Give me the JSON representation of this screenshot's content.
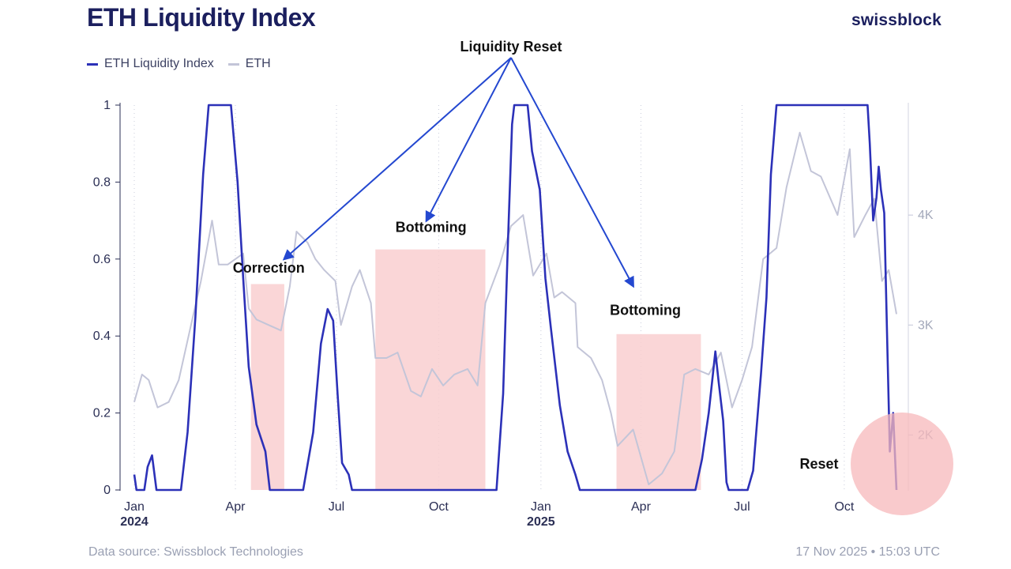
{
  "header": {
    "title": "ETH Liquidity Index",
    "brand": "swissblock"
  },
  "legend": [
    {
      "label": "ETH Liquidity Index",
      "color": "#2c31b8"
    },
    {
      "label": "ETH",
      "color": "#c3c5d8"
    }
  ],
  "footer": {
    "source": "Data source: Swissblock Technologies",
    "timestamp": "17 Nov 2025 • 15:03 UTC"
  },
  "chart_data": {
    "type": "line",
    "x_axis": {
      "ticks": [
        "Jan",
        "Apr",
        "Jul",
        "Oct",
        "Jan",
        "Apr",
        "Jul",
        "Oct"
      ],
      "year_labels": [
        {
          "tick_index": 0,
          "label": "2024"
        },
        {
          "tick_index": 4,
          "label": "2025"
        }
      ],
      "tick_dates": [
        "2024-01-01",
        "2024-04-01",
        "2024-07-01",
        "2024-10-01",
        "2025-01-01",
        "2025-04-01",
        "2025-07-01",
        "2025-10-01"
      ]
    },
    "y_left": {
      "ticks": [
        "0",
        "0.2",
        "0.4",
        "0.6",
        "0.8",
        "1"
      ],
      "range": [
        0,
        1
      ]
    },
    "y_right": {
      "ticks": [
        "2K",
        "3K",
        "4K"
      ],
      "range": [
        1500,
        5000
      ]
    },
    "grid": "vertical dotted",
    "legend_position": "top-left",
    "series": [
      {
        "name": "ETH Liquidity Index",
        "axis": "left",
        "color": "#2c31b8",
        "points": [
          [
            "2024-01-01",
            0.04
          ],
          [
            "2024-01-03",
            0.0
          ],
          [
            "2024-01-10",
            0.0
          ],
          [
            "2024-01-13",
            0.06
          ],
          [
            "2024-01-17",
            0.09
          ],
          [
            "2024-01-21",
            0.0
          ],
          [
            "2024-02-12",
            0.0
          ],
          [
            "2024-02-18",
            0.15
          ],
          [
            "2024-02-25",
            0.45
          ],
          [
            "2024-03-03",
            0.82
          ],
          [
            "2024-03-08",
            1.0
          ],
          [
            "2024-03-28",
            1.0
          ],
          [
            "2024-04-03",
            0.8
          ],
          [
            "2024-04-08",
            0.55
          ],
          [
            "2024-04-13",
            0.32
          ],
          [
            "2024-04-20",
            0.17
          ],
          [
            "2024-04-28",
            0.1
          ],
          [
            "2024-05-02",
            0.0
          ],
          [
            "2024-06-01",
            0.0
          ],
          [
            "2024-06-10",
            0.15
          ],
          [
            "2024-06-17",
            0.38
          ],
          [
            "2024-06-23",
            0.47
          ],
          [
            "2024-06-28",
            0.44
          ],
          [
            "2024-07-02",
            0.25
          ],
          [
            "2024-07-06",
            0.07
          ],
          [
            "2024-07-12",
            0.04
          ],
          [
            "2024-07-15",
            0.0
          ],
          [
            "2024-11-22",
            0.0
          ],
          [
            "2024-11-28",
            0.25
          ],
          [
            "2024-12-02",
            0.62
          ],
          [
            "2024-12-06",
            0.95
          ],
          [
            "2024-12-08",
            1.0
          ],
          [
            "2024-12-20",
            1.0
          ],
          [
            "2024-12-24",
            0.88
          ],
          [
            "2024-12-31",
            0.78
          ],
          [
            "2025-01-05",
            0.55
          ],
          [
            "2025-01-10",
            0.42
          ],
          [
            "2025-01-18",
            0.22
          ],
          [
            "2025-01-25",
            0.1
          ],
          [
            "2025-02-01",
            0.04
          ],
          [
            "2025-02-05",
            0.0
          ],
          [
            "2025-05-20",
            0.0
          ],
          [
            "2025-05-26",
            0.08
          ],
          [
            "2025-06-01",
            0.2
          ],
          [
            "2025-06-07",
            0.36
          ],
          [
            "2025-06-10",
            0.28
          ],
          [
            "2025-06-14",
            0.18
          ],
          [
            "2025-06-17",
            0.02
          ],
          [
            "2025-06-19",
            0.0
          ],
          [
            "2025-07-06",
            0.0
          ],
          [
            "2025-07-11",
            0.05
          ],
          [
            "2025-07-18",
            0.3
          ],
          [
            "2025-07-23",
            0.5
          ],
          [
            "2025-07-27",
            0.82
          ],
          [
            "2025-08-01",
            1.0
          ],
          [
            "2025-10-22",
            1.0
          ],
          [
            "2025-10-24",
            0.9
          ],
          [
            "2025-10-27",
            0.7
          ],
          [
            "2025-10-30",
            0.76
          ],
          [
            "2025-11-01",
            0.84
          ],
          [
            "2025-11-03",
            0.78
          ],
          [
            "2025-11-06",
            0.72
          ],
          [
            "2025-11-09",
            0.35
          ],
          [
            "2025-11-11",
            0.1
          ],
          [
            "2025-11-14",
            0.2
          ],
          [
            "2025-11-17",
            0.0
          ]
        ]
      },
      {
        "name": "ETH",
        "axis": "right",
        "color": "#c3c5d8",
        "points": [
          [
            "2024-01-01",
            2300
          ],
          [
            "2024-01-08",
            2550
          ],
          [
            "2024-01-14",
            2500
          ],
          [
            "2024-01-22",
            2250
          ],
          [
            "2024-02-01",
            2300
          ],
          [
            "2024-02-10",
            2500
          ],
          [
            "2024-02-20",
            2950
          ],
          [
            "2024-03-01",
            3400
          ],
          [
            "2024-03-11",
            3950
          ],
          [
            "2024-03-17",
            3550
          ],
          [
            "2024-03-25",
            3550
          ],
          [
            "2024-04-01",
            3600
          ],
          [
            "2024-04-08",
            3650
          ],
          [
            "2024-04-13",
            3150
          ],
          [
            "2024-04-20",
            3050
          ],
          [
            "2024-05-01",
            3000
          ],
          [
            "2024-05-12",
            2950
          ],
          [
            "2024-05-20",
            3350
          ],
          [
            "2024-05-26",
            3850
          ],
          [
            "2024-06-05",
            3750
          ],
          [
            "2024-06-12",
            3600
          ],
          [
            "2024-06-20",
            3500
          ],
          [
            "2024-06-30",
            3400
          ],
          [
            "2024-07-05",
            3000
          ],
          [
            "2024-07-15",
            3350
          ],
          [
            "2024-07-22",
            3500
          ],
          [
            "2024-08-01",
            3200
          ],
          [
            "2024-08-05",
            2700
          ],
          [
            "2024-08-15",
            2700
          ],
          [
            "2024-08-25",
            2750
          ],
          [
            "2024-09-06",
            2400
          ],
          [
            "2024-09-15",
            2350
          ],
          [
            "2024-09-25",
            2600
          ],
          [
            "2024-10-05",
            2450
          ],
          [
            "2024-10-15",
            2550
          ],
          [
            "2024-10-27",
            2600
          ],
          [
            "2024-11-05",
            2450
          ],
          [
            "2024-11-12",
            3200
          ],
          [
            "2024-11-25",
            3550
          ],
          [
            "2024-12-05",
            3900
          ],
          [
            "2024-12-16",
            4000
          ],
          [
            "2024-12-25",
            3450
          ],
          [
            "2025-01-06",
            3650
          ],
          [
            "2025-01-13",
            3250
          ],
          [
            "2025-01-20",
            3300
          ],
          [
            "2025-02-01",
            3200
          ],
          [
            "2025-02-03",
            2800
          ],
          [
            "2025-02-15",
            2700
          ],
          [
            "2025-02-25",
            2500
          ],
          [
            "2025-03-05",
            2200
          ],
          [
            "2025-03-11",
            1900
          ],
          [
            "2025-03-25",
            2050
          ],
          [
            "2025-04-08",
            1550
          ],
          [
            "2025-04-20",
            1650
          ],
          [
            "2025-05-01",
            1850
          ],
          [
            "2025-05-10",
            2550
          ],
          [
            "2025-05-20",
            2600
          ],
          [
            "2025-06-01",
            2550
          ],
          [
            "2025-06-12",
            2750
          ],
          [
            "2025-06-22",
            2250
          ],
          [
            "2025-07-01",
            2500
          ],
          [
            "2025-07-10",
            2800
          ],
          [
            "2025-07-20",
            3600
          ],
          [
            "2025-08-01",
            3700
          ],
          [
            "2025-08-10",
            4250
          ],
          [
            "2025-08-22",
            4750
          ],
          [
            "2025-09-01",
            4400
          ],
          [
            "2025-09-10",
            4350
          ],
          [
            "2025-09-25",
            4000
          ],
          [
            "2025-10-06",
            4600
          ],
          [
            "2025-10-10",
            3800
          ],
          [
            "2025-10-20",
            4000
          ],
          [
            "2025-10-28",
            4150
          ],
          [
            "2025-11-04",
            3400
          ],
          [
            "2025-11-10",
            3500
          ],
          [
            "2025-11-17",
            3100
          ]
        ]
      }
    ],
    "shaded_regions": [
      {
        "start": "2024-04-15",
        "end": "2024-05-15",
        "top": 0.535
      },
      {
        "start": "2024-08-05",
        "end": "2024-11-12",
        "top": 0.625
      },
      {
        "start": "2025-03-10",
        "end": "2025-05-25",
        "top": 0.405
      }
    ],
    "annotations": [
      {
        "text": "Liquidity Reset",
        "arrow_targets": [
          {
            "date": "2024-05-15",
            "value": 0.6
          },
          {
            "date": "2024-09-20",
            "value": 0.7
          },
          {
            "date": "2025-03-25",
            "value": 0.53
          }
        ]
      },
      {
        "text": "Correction",
        "date": "2024-05-01",
        "value": 0.565
      },
      {
        "text": "Bottoming",
        "date": "2024-09-24",
        "value": 0.67
      },
      {
        "text": "Bottoming",
        "date": "2025-04-05",
        "value": 0.455
      },
      {
        "text": "Reset",
        "date": "2025-11-10",
        "value": 0.07
      }
    ]
  }
}
